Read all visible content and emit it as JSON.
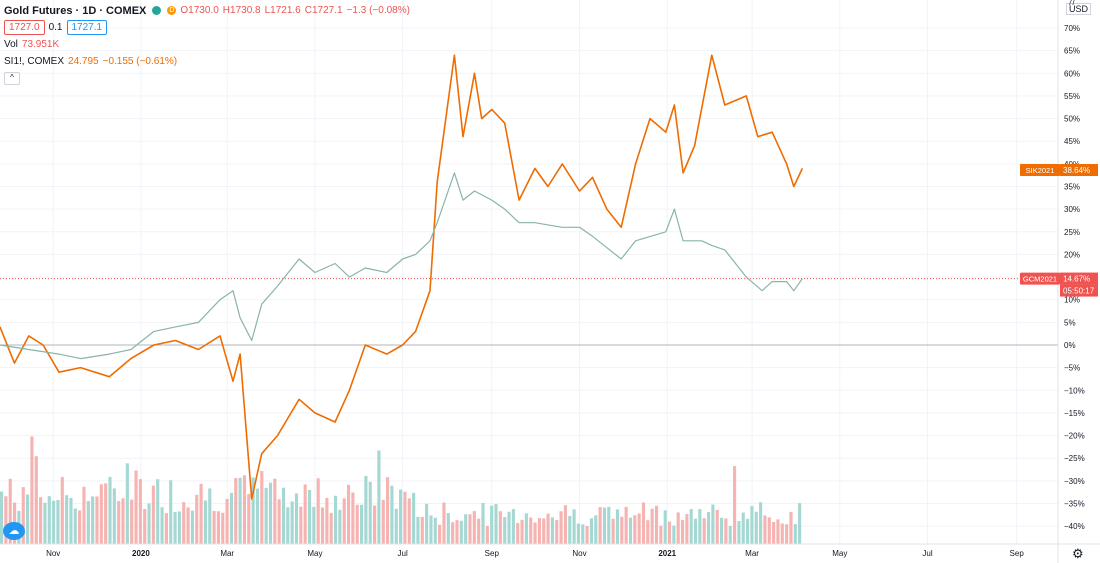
{
  "legend": {
    "symbol": "Gold Futures · 1D · COMEX",
    "open": "O1730.0",
    "high": "H1730.8",
    "low": "L1721.6",
    "close": "C1727.1",
    "change": "−1.3 (−0.08%)",
    "bid": "1727.0",
    "spread": "0.1",
    "ask": "1727.1",
    "vol_label": "Vol",
    "vol_value": "73.951K",
    "compare_symbol": "SI1!, COMEX",
    "compare_value": "24.795",
    "compare_change": "−0.155 (−0.61%)",
    "collapse_glyph": "^"
  },
  "axis": {
    "currency": "USD",
    "scale_icon": "7/"
  },
  "colors": {
    "up": "#26a69a",
    "down": "#ef5350",
    "silver_line": "#ef6c00",
    "volume_up": "#a5d8d3",
    "volume_down": "#f5b3b1"
  },
  "icons": {
    "settings": "gear-icon",
    "logo": "tradingview-logo-icon"
  },
  "chart_data": {
    "type": "line",
    "y_axis": {
      "unit": "%",
      "range": [
        -42,
        72
      ],
      "ticks": [
        "70%",
        "65%",
        "60%",
        "55%",
        "50%",
        "45%",
        "40%",
        "35%",
        "30%",
        "25%",
        "20%",
        "15%",
        "10%",
        "5%",
        "0%",
        "−5%",
        "−10%",
        "−15%",
        "−20%",
        "−25%",
        "−30%",
        "−35%",
        "−40%"
      ]
    },
    "x_axis": {
      "ticks": [
        "Nov",
        "2020",
        "Mar",
        "May",
        "Jul",
        "Sep",
        "Nov",
        "2021",
        "Mar",
        "May",
        "Jul",
        "Sep"
      ]
    },
    "series": [
      {
        "name": "SIK2021",
        "last_label": "38.64%",
        "points": [
          [
            "2019-09-25",
            4
          ],
          [
            "2019-10-05",
            -4
          ],
          [
            "2019-10-15",
            2
          ],
          [
            "2019-10-25",
            0
          ],
          [
            "2019-11-05",
            -6
          ],
          [
            "2019-11-20",
            -5
          ],
          [
            "2019-12-10",
            -7
          ],
          [
            "2019-12-25",
            -3
          ],
          [
            "2020-01-10",
            0
          ],
          [
            "2020-01-25",
            1
          ],
          [
            "2020-02-10",
            -1
          ],
          [
            "2020-02-25",
            2
          ],
          [
            "2020-03-05",
            -8
          ],
          [
            "2020-03-10",
            -2
          ],
          [
            "2020-03-18",
            -34
          ],
          [
            "2020-03-25",
            -24
          ],
          [
            "2020-04-05",
            -20
          ],
          [
            "2020-04-20",
            -12
          ],
          [
            "2020-05-01",
            -15
          ],
          [
            "2020-05-15",
            -17
          ],
          [
            "2020-05-25",
            -10
          ],
          [
            "2020-06-05",
            0
          ],
          [
            "2020-06-20",
            -2
          ],
          [
            "2020-07-01",
            0
          ],
          [
            "2020-07-10",
            3
          ],
          [
            "2020-07-20",
            12
          ],
          [
            "2020-07-25",
            36
          ],
          [
            "2020-08-06",
            64
          ],
          [
            "2020-08-12",
            46
          ],
          [
            "2020-08-20",
            60
          ],
          [
            "2020-08-25",
            50
          ],
          [
            "2020-09-01",
            52
          ],
          [
            "2020-09-10",
            49
          ],
          [
            "2020-09-20",
            32
          ],
          [
            "2020-10-01",
            39
          ],
          [
            "2020-10-10",
            35
          ],
          [
            "2020-10-20",
            40
          ],
          [
            "2020-11-01",
            34
          ],
          [
            "2020-11-10",
            37
          ],
          [
            "2020-11-20",
            30
          ],
          [
            "2020-11-30",
            26
          ],
          [
            "2020-12-10",
            40
          ],
          [
            "2020-12-20",
            50
          ],
          [
            "2020-12-31",
            47
          ],
          [
            "2021-01-06",
            53
          ],
          [
            "2021-01-12",
            38
          ],
          [
            "2021-01-20",
            44
          ],
          [
            "2021-02-01",
            64
          ],
          [
            "2021-02-10",
            53
          ],
          [
            "2021-02-25",
            55
          ],
          [
            "2021-03-05",
            46
          ],
          [
            "2021-03-15",
            47
          ],
          [
            "2021-03-25",
            40
          ],
          [
            "2021-03-30",
            35
          ],
          [
            "2021-04-05",
            39
          ]
        ]
      },
      {
        "name": "GCM2021",
        "last_label": "14.67%",
        "countdown": "05:50:17",
        "points": [
          [
            "2019-09-25",
            0
          ],
          [
            "2019-10-15",
            -1
          ],
          [
            "2019-11-05",
            -2
          ],
          [
            "2019-11-20",
            -3
          ],
          [
            "2019-12-10",
            -2
          ],
          [
            "2019-12-25",
            -1
          ],
          [
            "2020-01-10",
            3
          ],
          [
            "2020-01-25",
            4
          ],
          [
            "2020-02-10",
            5
          ],
          [
            "2020-02-25",
            10
          ],
          [
            "2020-03-05",
            12
          ],
          [
            "2020-03-10",
            6
          ],
          [
            "2020-03-18",
            1
          ],
          [
            "2020-03-25",
            9
          ],
          [
            "2020-04-05",
            13
          ],
          [
            "2020-04-20",
            19
          ],
          [
            "2020-05-01",
            16
          ],
          [
            "2020-05-15",
            18
          ],
          [
            "2020-05-25",
            15
          ],
          [
            "2020-06-05",
            17
          ],
          [
            "2020-06-20",
            16
          ],
          [
            "2020-07-01",
            19
          ],
          [
            "2020-07-10",
            20
          ],
          [
            "2020-07-20",
            23
          ],
          [
            "2020-07-25",
            27
          ],
          [
            "2020-08-06",
            38
          ],
          [
            "2020-08-12",
            32
          ],
          [
            "2020-08-20",
            34
          ],
          [
            "2020-09-01",
            32
          ],
          [
            "2020-09-10",
            30
          ],
          [
            "2020-09-20",
            27
          ],
          [
            "2020-10-01",
            27
          ],
          [
            "2020-10-20",
            26
          ],
          [
            "2020-11-01",
            26
          ],
          [
            "2020-11-10",
            24
          ],
          [
            "2020-11-30",
            19
          ],
          [
            "2020-12-10",
            23
          ],
          [
            "2020-12-31",
            25
          ],
          [
            "2021-01-06",
            30
          ],
          [
            "2021-01-12",
            23
          ],
          [
            "2021-01-25",
            23
          ],
          [
            "2021-02-01",
            22
          ],
          [
            "2021-02-10",
            21
          ],
          [
            "2021-02-25",
            15
          ],
          [
            "2021-03-08",
            12
          ],
          [
            "2021-03-15",
            14
          ],
          [
            "2021-03-25",
            14
          ],
          [
            "2021-03-30",
            12
          ],
          [
            "2021-04-05",
            14.67
          ]
        ]
      }
    ],
    "zero_line": 0,
    "current_line": 14.67,
    "volume": {
      "note": "relative daily volume bars",
      "count": 185
    }
  }
}
